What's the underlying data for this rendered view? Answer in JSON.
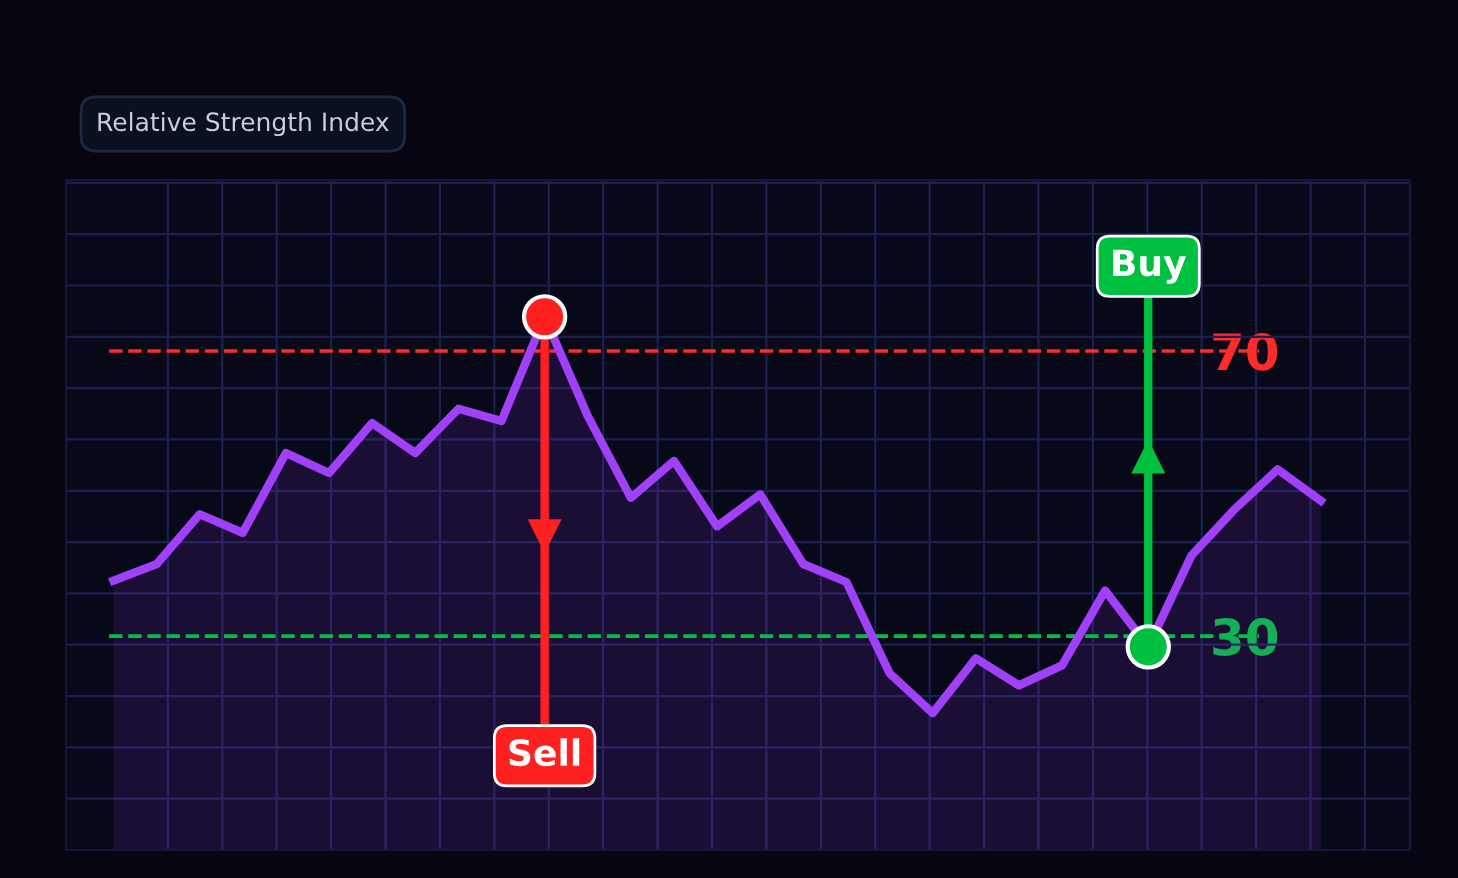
{
  "chart_data": {
    "type": "area",
    "title": "Relative Strength Index",
    "categories": [
      null,
      null,
      null,
      null,
      null,
      null,
      null,
      null,
      null,
      null,
      null,
      null,
      null,
      null,
      null,
      null,
      null,
      null,
      null,
      null,
      null,
      null,
      null,
      null,
      null,
      null,
      null,
      null,
      null
    ],
    "series": [
      {
        "color": "#a040f8",
        "values": [
          37.8,
          40.1,
          47.1,
          44.5,
          55.7,
          52.9,
          59.9,
          55.7,
          61.9,
          60.2,
          74.8,
          60.9,
          49.4,
          54.6,
          45.4,
          49.9,
          40.1,
          37.6,
          24.8,
          19.2,
          26.9,
          23.1,
          25.9,
          36.4,
          28.5,
          41.3,
          47.8,
          53.4,
          49.0
        ]
      },
      {
        "type": "scatter",
        "name": "Sell",
        "color": "#ff2020",
        "values": [
          null,
          null,
          null,
          null,
          null,
          null,
          null,
          null,
          null,
          null,
          74.8,
          null,
          null,
          null,
          null,
          null,
          null,
          null,
          null,
          null,
          null,
          null,
          null,
          null,
          null,
          null,
          null,
          null,
          null
        ]
      },
      {
        "type": "scatter",
        "name": "Buy",
        "color": "#00c040",
        "values": [
          null,
          null,
          null,
          null,
          null,
          null,
          null,
          null,
          null,
          null,
          null,
          null,
          null,
          null,
          null,
          null,
          null,
          null,
          null,
          null,
          null,
          null,
          null,
          null,
          28.5,
          null,
          null,
          null,
          null
        ]
      }
    ],
    "ylim": [
      0,
      94
    ],
    "yticks": [
      30,
      70
    ],
    "grid": true,
    "ref_lines": [
      {
        "axis": "y",
        "value": 70,
        "color": "#ff2a2a",
        "line_style": "dashed"
      },
      {
        "axis": "y",
        "value": 30,
        "color": "#00c040",
        "line_style": "dashed"
      }
    ]
  }
}
